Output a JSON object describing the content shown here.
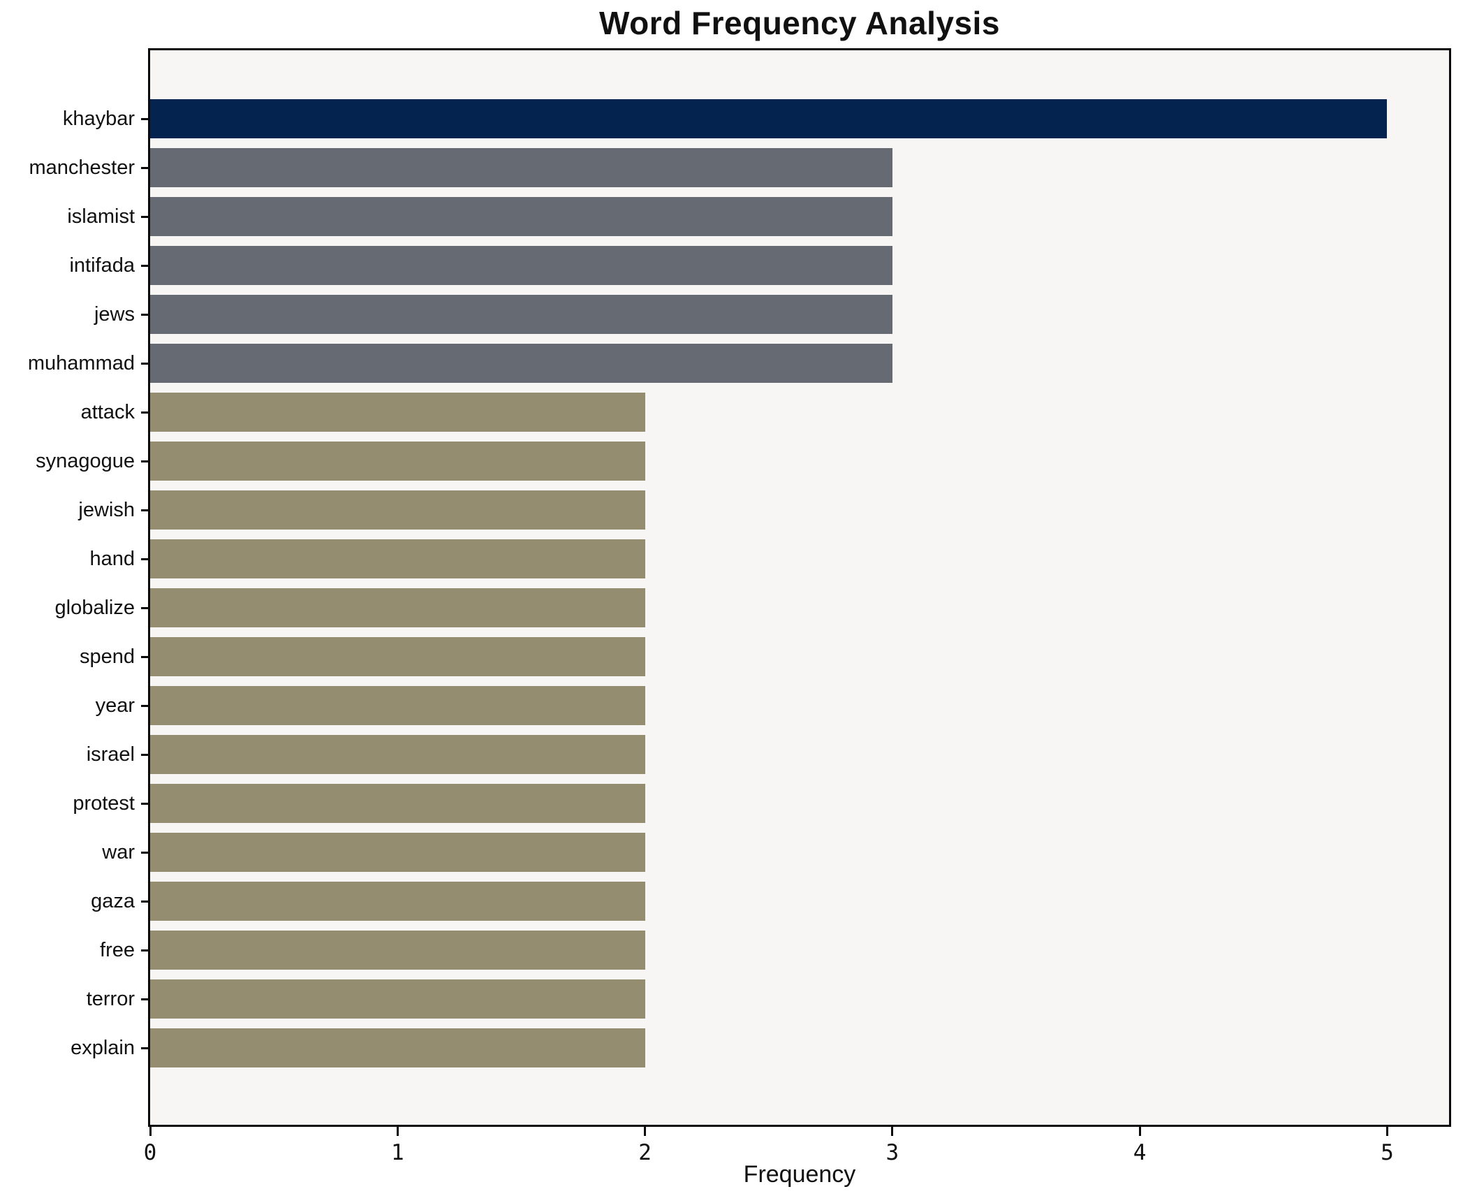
{
  "chart_data": {
    "type": "bar",
    "orientation": "horizontal",
    "title": "Word Frequency Analysis",
    "xlabel": "Frequency",
    "ylabel": "",
    "categories": [
      "khaybar",
      "manchester",
      "islamist",
      "intifada",
      "jews",
      "muhammad",
      "attack",
      "synagogue",
      "jewish",
      "hand",
      "globalize",
      "spend",
      "year",
      "israel",
      "protest",
      "war",
      "gaza",
      "free",
      "terror",
      "explain"
    ],
    "values": [
      5,
      3,
      3,
      3,
      3,
      3,
      2,
      2,
      2,
      2,
      2,
      2,
      2,
      2,
      2,
      2,
      2,
      2,
      2,
      2
    ],
    "bar_colors": [
      "#04234e",
      "#666a73",
      "#666a73",
      "#666a73",
      "#666a73",
      "#666a73",
      "#948d70",
      "#948d70",
      "#948d70",
      "#948d70",
      "#948d70",
      "#948d70",
      "#948d70",
      "#948d70",
      "#948d70",
      "#948d70",
      "#948d70",
      "#948d70",
      "#948d70",
      "#948d70"
    ],
    "xticks": [
      0,
      1,
      2,
      3,
      4,
      5
    ],
    "xlim": [
      0,
      5.25
    ],
    "grid": false,
    "legend": null,
    "plot_background": "#f7f6f4",
    "figure_background": "#ffffff",
    "color_legend": {
      "frequency_5": "#04234e",
      "frequency_3": "#666a73",
      "frequency_2": "#948d70"
    }
  }
}
